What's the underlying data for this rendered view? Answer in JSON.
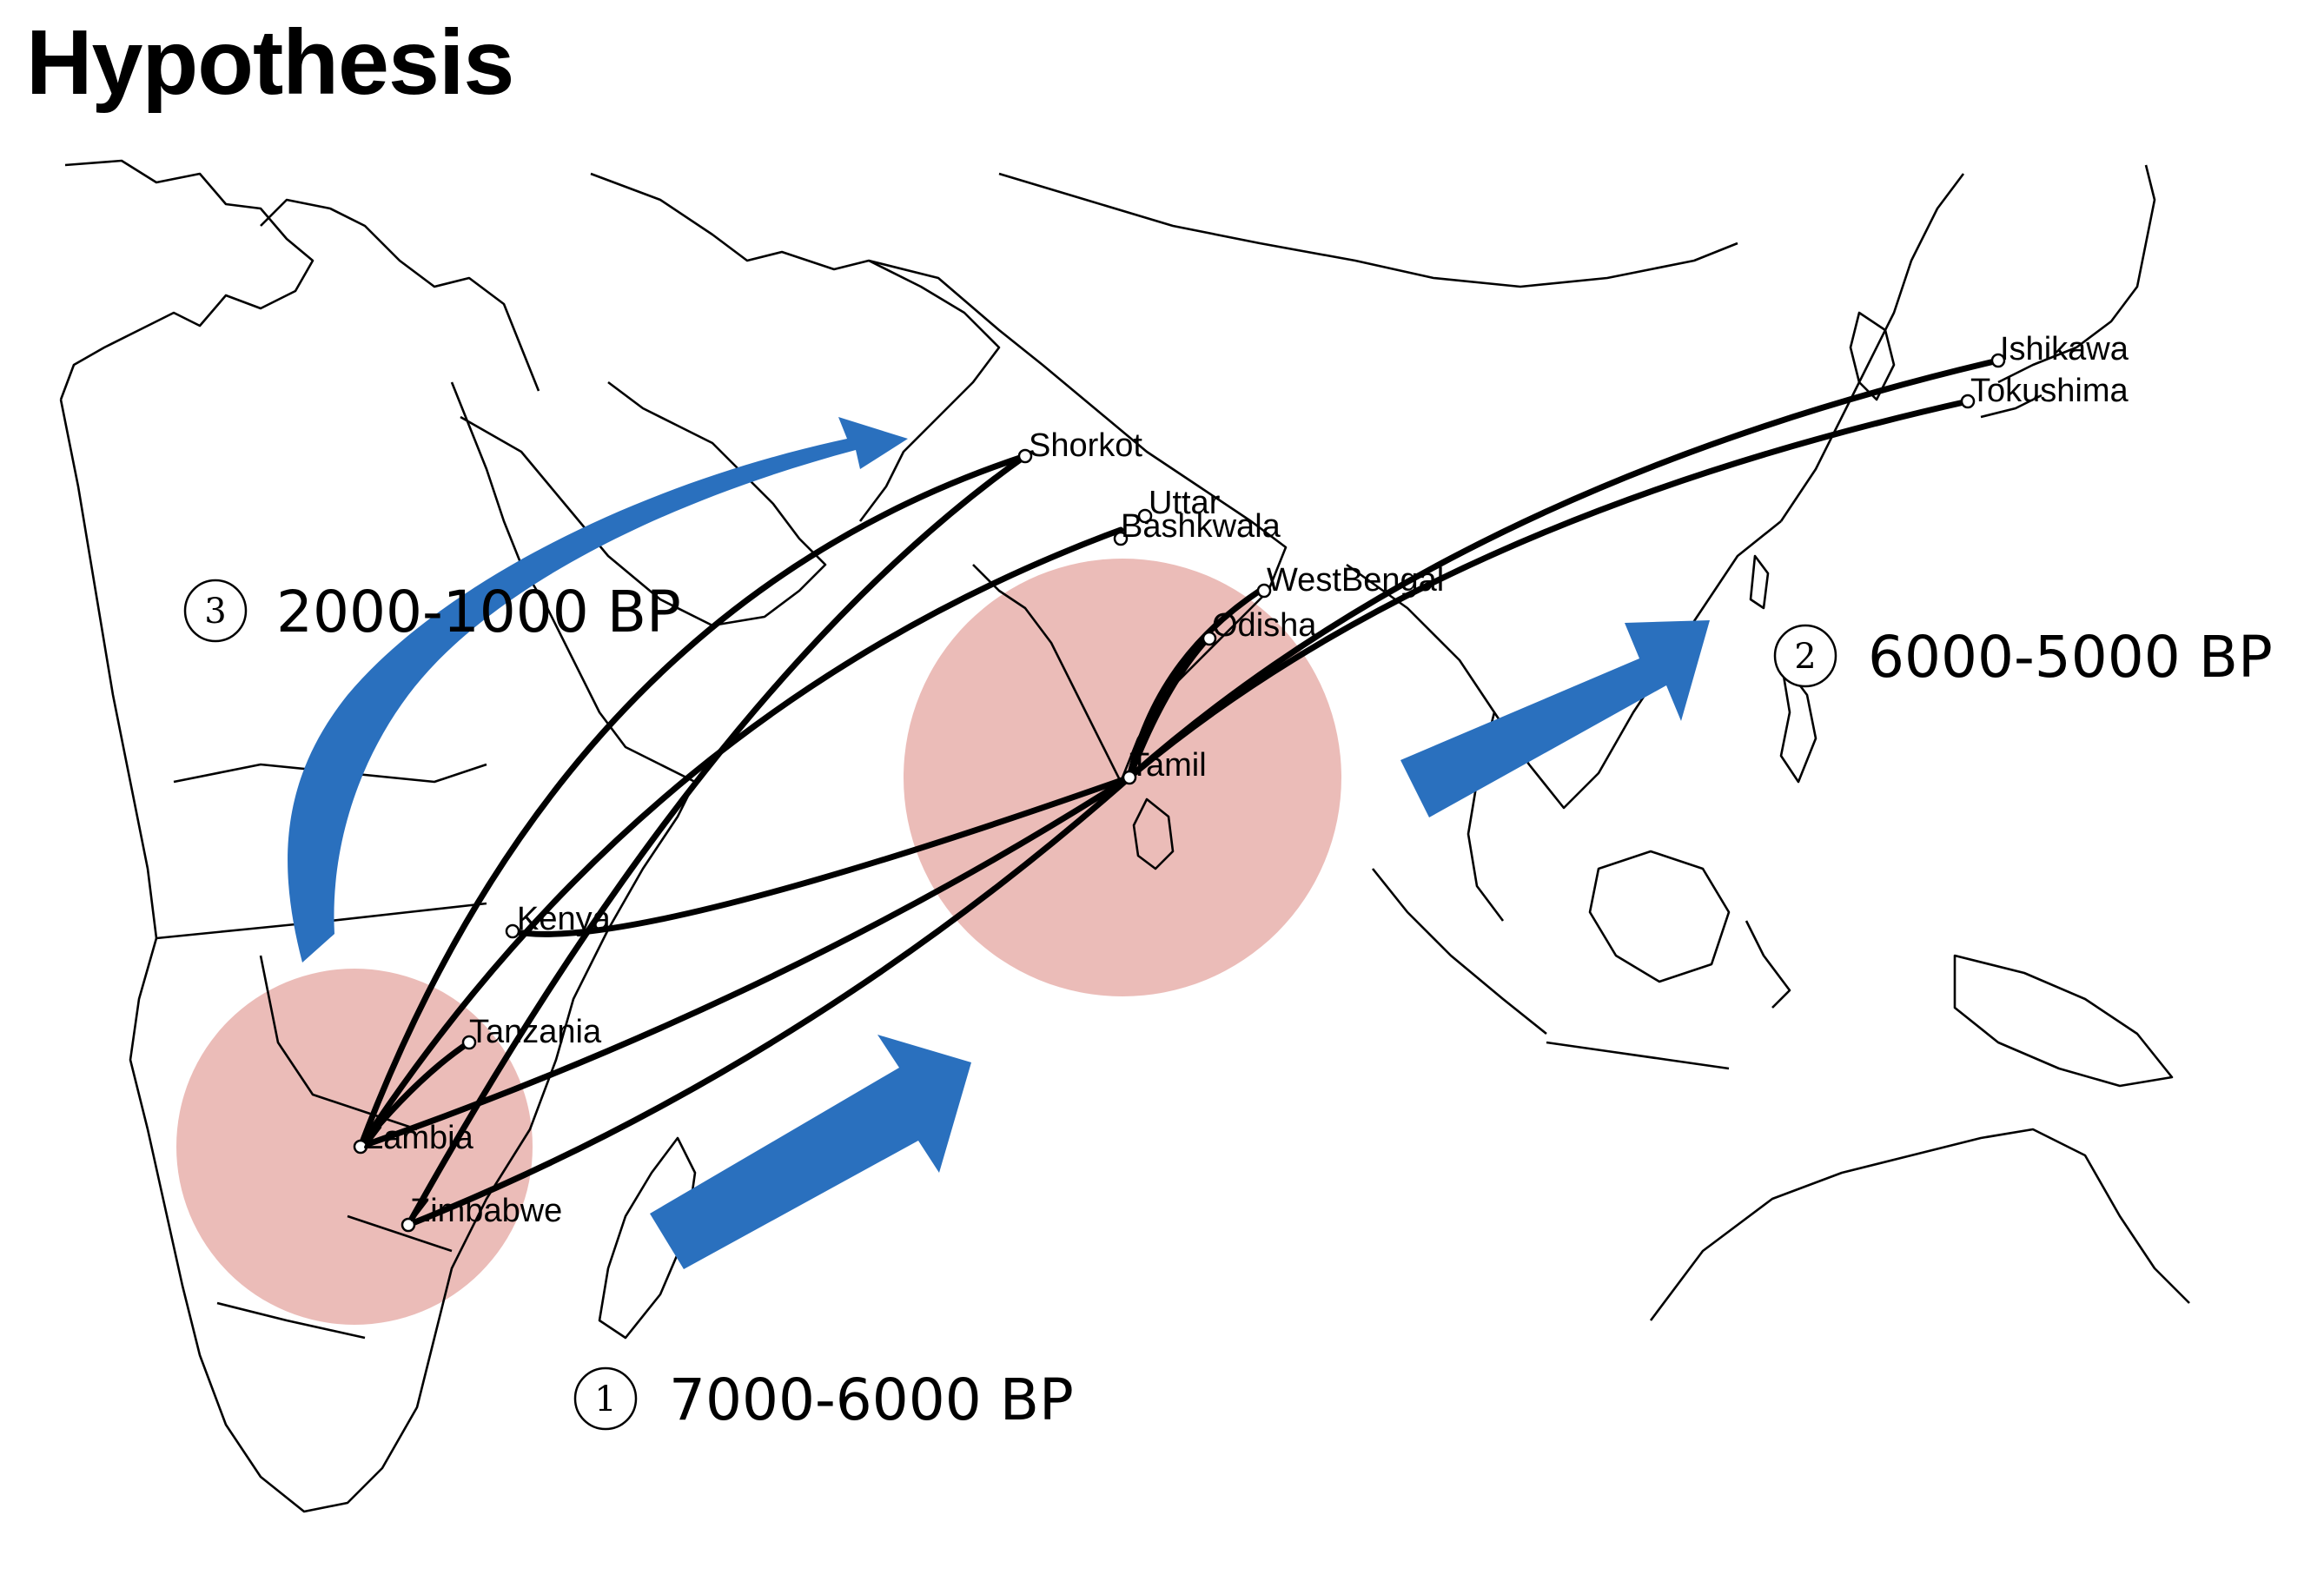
{
  "title": "Hypothesis",
  "colors": {
    "arrow": "#2A70BE",
    "region": "#E7B0AC",
    "route": "#000000",
    "coastline": "#000000"
  },
  "sites": {
    "shorkot": "Shorkot",
    "uttar": "Uttar",
    "bashkwala": "Bashkwala",
    "westbengal": "WestBengal",
    "odisha": "Odisha",
    "tamil": "Tamil",
    "ishikawa": "Ishikawa",
    "tokushima": "Tokushima",
    "kenya": "Kenya",
    "tanzania": "Tanzania",
    "zambia": "Zambia",
    "zimbabwe": "Zimbabwe"
  },
  "phases": [
    {
      "number": "1",
      "label": "7000-6000 BP"
    },
    {
      "number": "2",
      "label": "6000-5000 BP"
    },
    {
      "number": "3",
      "label": "2000-1000 BP"
    }
  ]
}
